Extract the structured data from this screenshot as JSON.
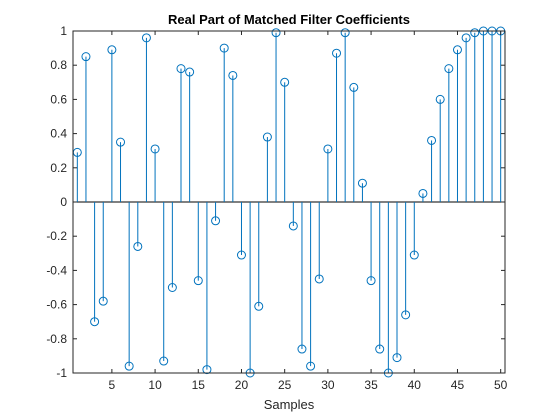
{
  "chart_data": {
    "type": "stem",
    "title": "Real Part of Matched Filter Coefficients",
    "xlabel": "Samples",
    "ylabel": "",
    "xlim": [
      0.5,
      50.5
    ],
    "ylim": [
      -1,
      1
    ],
    "xticks": [
      5,
      10,
      15,
      20,
      25,
      30,
      35,
      40,
      45,
      50
    ],
    "yticks": [
      -1,
      -0.8,
      -0.6,
      -0.4,
      -0.2,
      0,
      0.2,
      0.4,
      0.6,
      0.8,
      1
    ],
    "grid": false,
    "legend": "none",
    "series": [
      {
        "color": "#0072BD",
        "marker": "open-circle",
        "x": [
          1,
          2,
          3,
          4,
          5,
          6,
          7,
          8,
          9,
          10,
          11,
          12,
          13,
          14,
          15,
          16,
          17,
          18,
          19,
          20,
          21,
          22,
          23,
          24,
          25,
          26,
          27,
          28,
          29,
          30,
          31,
          32,
          33,
          34,
          35,
          36,
          37,
          38,
          39,
          40,
          41,
          42,
          43,
          44,
          45,
          46,
          47,
          48,
          49,
          50
        ],
        "values": [
          0.29,
          0.85,
          -0.7,
          -0.58,
          0.89,
          0.35,
          -0.96,
          -0.26,
          0.96,
          0.31,
          -0.93,
          -0.5,
          0.78,
          0.76,
          -0.46,
          -0.98,
          -0.11,
          0.9,
          0.74,
          -0.31,
          -1.0,
          -0.61,
          0.38,
          0.99,
          0.7,
          -0.14,
          -0.86,
          -0.96,
          -0.45,
          0.31,
          0.87,
          0.99,
          0.67,
          0.11,
          -0.46,
          -0.86,
          -1.0,
          -0.91,
          -0.66,
          -0.31,
          0.05,
          0.36,
          0.6,
          0.78,
          0.89,
          0.96,
          0.99,
          1.0,
          1.0,
          1.0
        ]
      }
    ]
  }
}
